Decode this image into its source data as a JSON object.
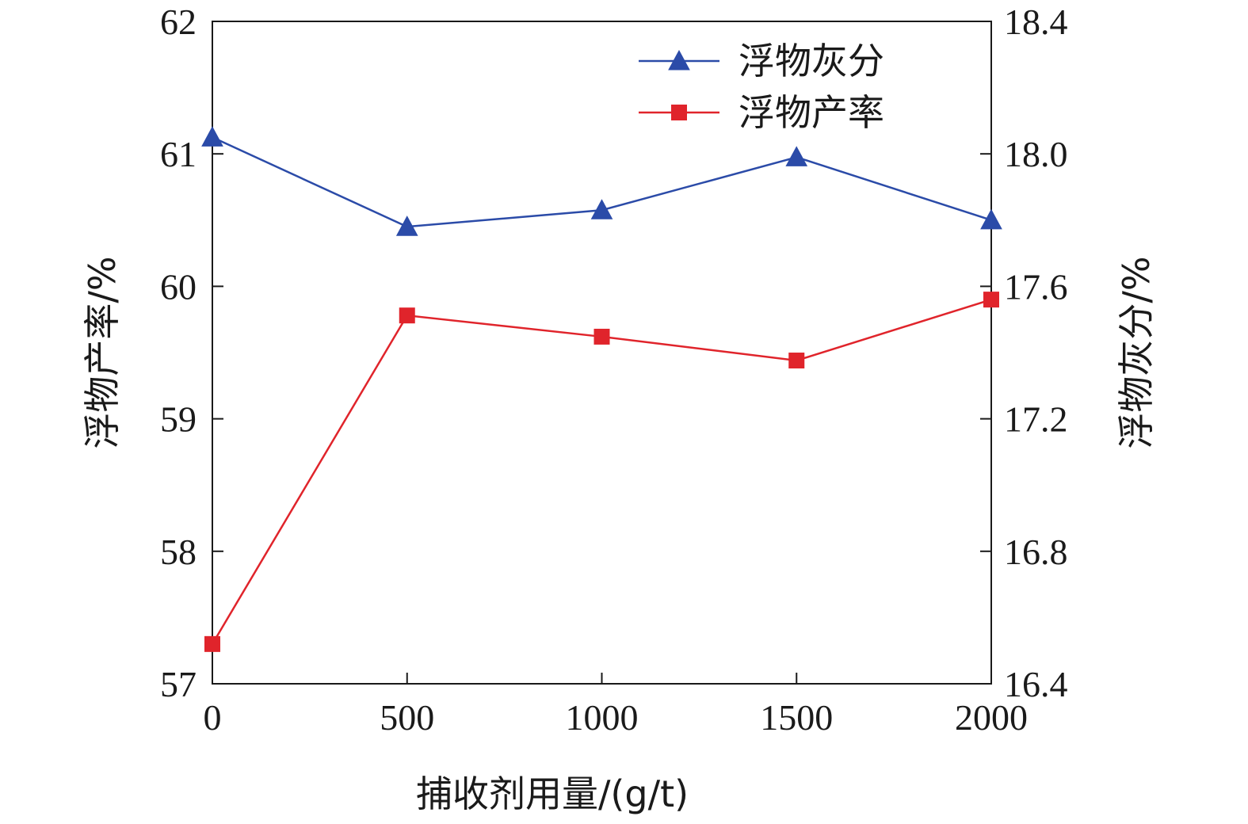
{
  "chart_data": {
    "type": "line",
    "x": [
      0,
      500,
      1000,
      1500,
      2000
    ],
    "xlabel": "捕收剂用量/(g/t)",
    "ylabel_left": "浮物产率/%",
    "ylabel_right": "浮物灰分/%",
    "xlim": [
      0,
      2000
    ],
    "ylim_left": [
      57,
      62
    ],
    "ylim_right": [
      16.4,
      18.4
    ],
    "x_ticks": [
      "0",
      "500",
      "1000",
      "1500",
      "2000"
    ],
    "y_left_ticks": [
      "57",
      "58",
      "59",
      "60",
      "61",
      "62"
    ],
    "y_right_ticks": [
      "16.4",
      "16.8",
      "17.2",
      "17.6",
      "18.0",
      "18.4"
    ],
    "grid": false,
    "legend_position": "top-right",
    "series": [
      {
        "name": "浮物灰分",
        "axis": "right",
        "marker": "triangle",
        "color": "#2b4ba8",
        "values": [
          18.05,
          17.78,
          17.83,
          17.99,
          17.8
        ]
      },
      {
        "name": "浮物产率",
        "axis": "left",
        "marker": "square",
        "color": "#e0242b",
        "values": [
          57.3,
          59.78,
          59.62,
          59.44,
          59.9
        ]
      }
    ]
  }
}
